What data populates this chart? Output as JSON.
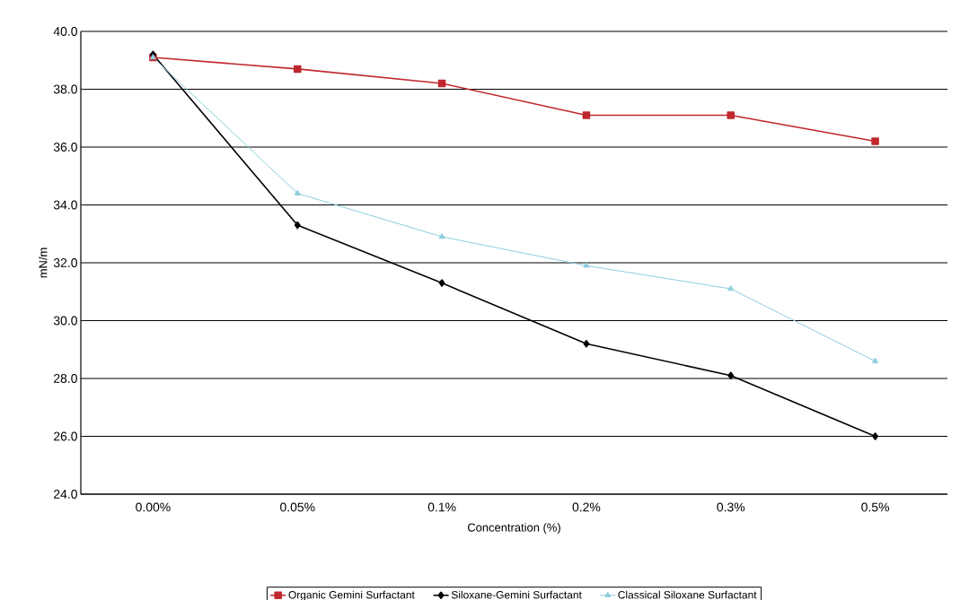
{
  "chart_data": {
    "type": "line",
    "xlabel": "Concentration (%)",
    "ylabel": "mN/m",
    "categories": [
      "0.00%",
      "0.05%",
      "0.1%",
      "0.2%",
      "0.3%",
      "0.5%"
    ],
    "series": [
      {
        "name": "Organic Gemini Surfactant",
        "color": "#c0282d",
        "marker": "square",
        "values": [
          39.1,
          38.7,
          38.2,
          37.1,
          37.1,
          36.2
        ]
      },
      {
        "name": "Siloxane-Gemini Surfactant",
        "color": "#000000",
        "marker": "diamond",
        "values": [
          39.2,
          33.3,
          31.3,
          29.2,
          28.1,
          26.0
        ]
      },
      {
        "name": "Classical Siloxane Surfactant",
        "color": "#8fcde0",
        "marker": "triangle",
        "values": [
          39.1,
          34.4,
          32.9,
          31.9,
          31.1,
          28.6
        ]
      }
    ],
    "ylim": [
      24.0,
      40.0
    ],
    "yticks": [
      {
        "value": 24,
        "label": "24.0"
      },
      {
        "value": 26,
        "label": "26.0"
      },
      {
        "value": 28,
        "label": "28.0"
      },
      {
        "value": 30,
        "label": "30.0"
      },
      {
        "value": 32,
        "label": "32.0"
      },
      {
        "value": 34,
        "label": "34.0"
      },
      {
        "value": 36,
        "label": "36.0"
      },
      {
        "value": 38,
        "label": "38.0"
      },
      {
        "value": 40,
        "label": "40.0"
      }
    ],
    "grid": "y",
    "legend": "bottom",
    "line_style": "solid"
  }
}
